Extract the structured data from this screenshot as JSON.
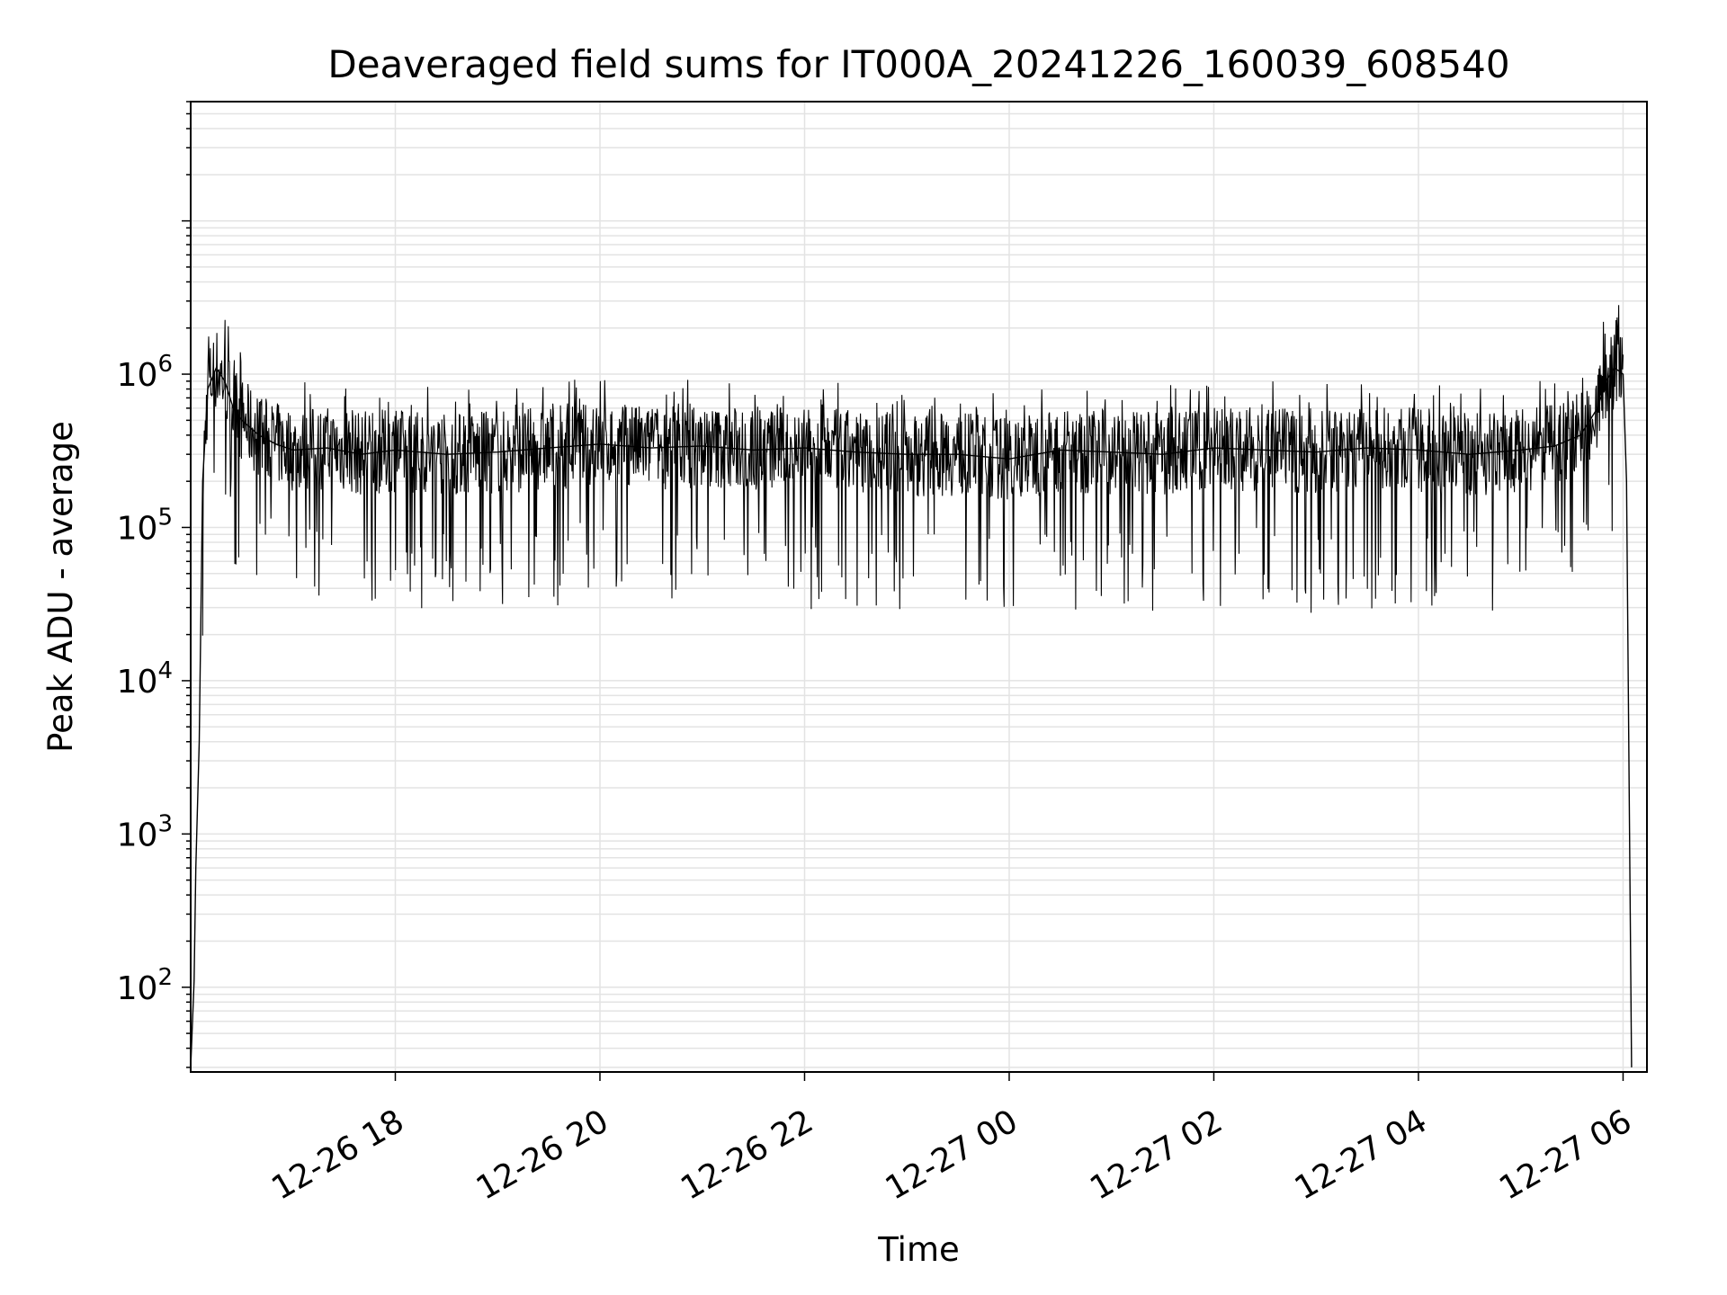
{
  "chart_data": {
    "type": "line",
    "title": "Deaveraged field sums for IT000A_20241226_160039_608540",
    "xlabel": "Time",
    "ylabel": "Peak ADU - average",
    "yscale": "log",
    "ylim": [
      28,
      60000000
    ],
    "xlim": [
      "2024-12-26 16:00",
      "2024-12-27 06:14"
    ],
    "x_ticks": [
      {
        "label": "12-26 18",
        "value": "2024-12-26 18:00"
      },
      {
        "label": "12-26 20",
        "value": "2024-12-26 20:00"
      },
      {
        "label": "12-26 22",
        "value": "2024-12-26 22:00"
      },
      {
        "label": "12-27 00",
        "value": "2024-12-27 00:00"
      },
      {
        "label": "12-27 02",
        "value": "2024-12-27 02:00"
      },
      {
        "label": "12-27 04",
        "value": "2024-12-27 04:00"
      },
      {
        "label": "12-27 06",
        "value": "2024-12-27 06:00"
      }
    ],
    "y_ticks": [
      {
        "base": "10",
        "exp": "2",
        "value": 100
      },
      {
        "base": "10",
        "exp": "3",
        "value": 1000
      },
      {
        "base": "10",
        "exp": "4",
        "value": 10000
      },
      {
        "base": "10",
        "exp": "5",
        "value": 100000
      },
      {
        "base": "10",
        "exp": "6",
        "value": 1000000
      }
    ],
    "grid": "major and minor",
    "series": [
      {
        "color": "#000000",
        "x": [
          "2024-12-26 16:00",
          "2024-12-26 16:02",
          "2024-12-26 16:03",
          "2024-12-26 16:05",
          "2024-12-26 16:07",
          "2024-12-26 16:10",
          "2024-12-26 16:15",
          "2024-12-26 16:20",
          "2024-12-26 16:25",
          "2024-12-26 16:30",
          "2024-12-26 16:40",
          "2024-12-26 16:50",
          "2024-12-26 17:00",
          "2024-12-26 17:20",
          "2024-12-26 17:40",
          "2024-12-26 18:00",
          "2024-12-26 18:30",
          "2024-12-26 19:00",
          "2024-12-26 19:30",
          "2024-12-26 20:00",
          "2024-12-26 20:30",
          "2024-12-26 21:00",
          "2024-12-26 21:30",
          "2024-12-26 22:00",
          "2024-12-26 22:30",
          "2024-12-26 23:00",
          "2024-12-26 23:30",
          "2024-12-27 00:00",
          "2024-12-27 00:30",
          "2024-12-27 01:00",
          "2024-12-27 01:30",
          "2024-12-27 02:00",
          "2024-12-27 02:30",
          "2024-12-27 03:00",
          "2024-12-27 03:30",
          "2024-12-27 04:00",
          "2024-12-27 04:30",
          "2024-12-27 05:00",
          "2024-12-27 05:20",
          "2024-12-27 05:35",
          "2024-12-27 05:45",
          "2024-12-27 05:50",
          "2024-12-27 05:55",
          "2024-12-27 06:00",
          "2024-12-27 06:02",
          "2024-12-27 06:05"
        ],
        "y": [
          30,
          110,
          600,
          4000,
          200000,
          800000,
          1100000,
          900000,
          600000,
          500000,
          400000,
          350000,
          320000,
          330000,
          300000,
          320000,
          300000,
          310000,
          330000,
          350000,
          330000,
          340000,
          320000,
          330000,
          310000,
          300000,
          300000,
          280000,
          320000,
          310000,
          300000,
          330000,
          320000,
          310000,
          330000,
          320000,
          300000,
          320000,
          340000,
          400000,
          600000,
          900000,
          1100000,
          1000000,
          200000,
          30
        ]
      }
    ]
  }
}
